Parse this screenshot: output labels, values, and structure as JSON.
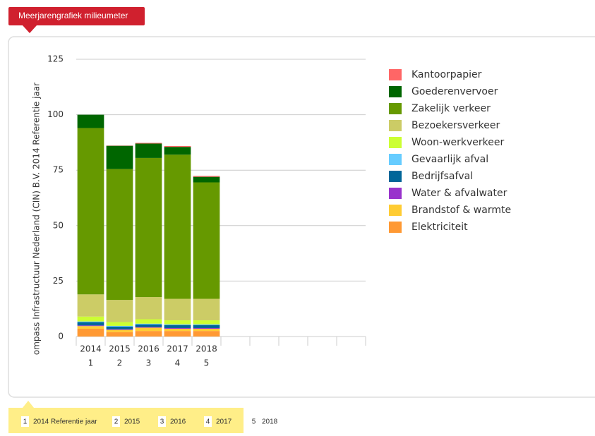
{
  "header": {
    "tab": "Meerjarengrafiek milieumeter"
  },
  "chart_data": {
    "type": "stacked-bar",
    "y_label": "ompass Infrastructuur Nederland (CIN) B.V. 2014 Referentie jaar",
    "categories": [
      "2014",
      "2015",
      "2016",
      "2017",
      "2018",
      null,
      null,
      null,
      null,
      null
    ],
    "category_numbers": [
      "1",
      "2",
      "3",
      "4",
      "5",
      null,
      null,
      null,
      null,
      null
    ],
    "ylim": [
      0,
      125
    ],
    "yticks": [
      0,
      25,
      50,
      75,
      100,
      125
    ],
    "grid": true,
    "series": [
      {
        "name": "Kantoorpapier",
        "color": "#ff6666",
        "values": [
          0,
          0.1,
          0.3,
          0.4,
          0.4,
          null,
          null,
          null,
          null,
          null
        ]
      },
      {
        "name": "Goederenvervoer",
        "color": "#006600",
        "values": [
          6,
          10.5,
          6.5,
          3.5,
          2.5,
          null,
          null,
          null,
          null,
          null
        ]
      },
      {
        "name": "Zakelijk verkeer",
        "color": "#669900",
        "values": [
          75,
          59,
          62.7,
          65,
          52.5,
          null,
          null,
          null,
          null,
          null
        ]
      },
      {
        "name": "Bezoekersverkeer",
        "color": "#cccc66",
        "values": [
          10,
          10,
          10,
          9.7,
          9.7,
          null,
          null,
          null,
          null,
          null
        ]
      },
      {
        "name": "Woon-werkverkeer",
        "color": "#ccff33",
        "values": [
          2.2,
          1.7,
          2,
          1.8,
          1.8,
          null,
          null,
          null,
          null,
          null
        ]
      },
      {
        "name": "Gevaarlijk afval",
        "color": "#66ccff",
        "values": [
          0.3,
          0.3,
          0.3,
          0.3,
          0.3,
          null,
          null,
          null,
          null,
          null
        ]
      },
      {
        "name": "Bedrijfsafval",
        "color": "#006699",
        "values": [
          1.5,
          1.2,
          1.2,
          1.4,
          1.4,
          null,
          null,
          null,
          null,
          null
        ]
      },
      {
        "name": "Water & afvalwater",
        "color": "#9933cc",
        "values": [
          0.3,
          0.3,
          0.3,
          0.3,
          0.3,
          null,
          null,
          null,
          null,
          null
        ]
      },
      {
        "name": "Brandstof & warmte",
        "color": "#ffcc33",
        "values": [
          1.2,
          1,
          1.5,
          1,
          1,
          null,
          null,
          null,
          null,
          null
        ]
      },
      {
        "name": "Elektriciteit",
        "color": "#ff9933",
        "values": [
          3.5,
          2,
          2.5,
          2.5,
          2.5,
          null,
          null,
          null,
          null,
          null
        ]
      }
    ]
  },
  "footer": {
    "items": [
      {
        "number": "1",
        "label": "2014 Referentie jaar"
      },
      {
        "number": "2",
        "label": "2015"
      },
      {
        "number": "3",
        "label": "2016"
      },
      {
        "number": "4",
        "label": "2017"
      },
      {
        "number": "5",
        "label": "2018"
      }
    ]
  }
}
